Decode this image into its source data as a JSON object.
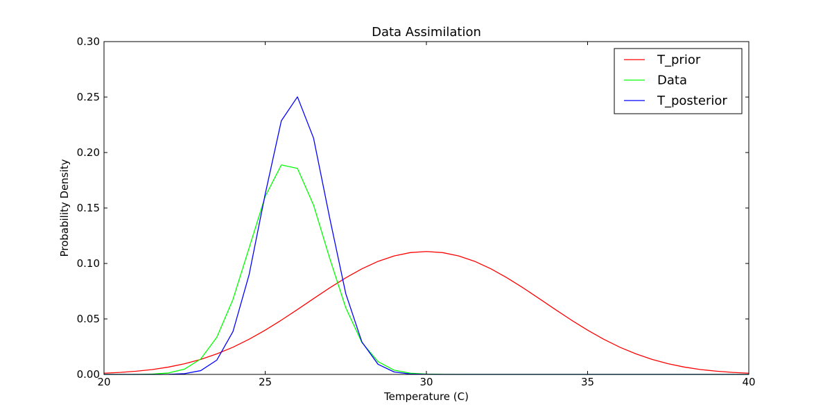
{
  "chart_data": {
    "type": "line",
    "title": "Data Assimilation",
    "xlabel": "Temperature (C)",
    "ylabel": "Probability Density",
    "xlim": [
      20,
      40
    ],
    "ylim": [
      0.0,
      0.3
    ],
    "xticks": [
      20,
      25,
      30,
      35,
      40
    ],
    "xtick_labels": [
      "20",
      "25",
      "30",
      "35",
      "40"
    ],
    "yticks": [
      0.0,
      0.05,
      0.1,
      0.15,
      0.2,
      0.25,
      0.3
    ],
    "ytick_labels": [
      "0.00",
      "0.05",
      "0.10",
      "0.15",
      "0.20",
      "0.25",
      "0.30"
    ],
    "grid": false,
    "legend_position": "top-right",
    "x": [
      20,
      20.5,
      21,
      21.5,
      22,
      22.5,
      23,
      23.5,
      24,
      24.5,
      25,
      25.5,
      26,
      26.5,
      27,
      27.5,
      28,
      28.5,
      29,
      29.5,
      30,
      30.5,
      31,
      31.5,
      32,
      32.5,
      33,
      33.5,
      34,
      34.5,
      35,
      35.5,
      36,
      36.5,
      37,
      37.5,
      38,
      38.5,
      39,
      39.5,
      40
    ],
    "series": [
      {
        "name": "T_prior",
        "color": "#ff0000",
        "values": [
          0.0011,
          0.0018,
          0.0029,
          0.0044,
          0.0066,
          0.0096,
          0.0135,
          0.0185,
          0.0245,
          0.0317,
          0.0399,
          0.0489,
          0.0585,
          0.0683,
          0.078,
          0.0871,
          0.0952,
          0.1019,
          0.1068,
          0.1098,
          0.1108,
          0.1098,
          0.1068,
          0.1019,
          0.0952,
          0.0871,
          0.078,
          0.0683,
          0.0585,
          0.0489,
          0.0399,
          0.0317,
          0.0245,
          0.0185,
          0.0135,
          0.0096,
          0.0066,
          0.0044,
          0.0029,
          0.0018,
          0.0011
        ]
      },
      {
        "name": "Data",
        "color": "#00ff00",
        "values": [
          0.0,
          0.0,
          0.0,
          0.0003,
          0.0013,
          0.0048,
          0.0139,
          0.0335,
          0.0676,
          0.1139,
          0.1604,
          0.1888,
          0.1857,
          0.1526,
          0.1047,
          0.06,
          0.0287,
          0.0115,
          0.0038,
          0.0011,
          0.0003,
          0.0001,
          0.0,
          0.0,
          0.0,
          0.0,
          0.0,
          0.0,
          0.0,
          0.0,
          0.0,
          0.0,
          0.0,
          0.0,
          0.0,
          0.0,
          0.0,
          0.0,
          0.0,
          0.0,
          0.0
        ]
      },
      {
        "name": "T_posterior",
        "color": "#0000ff",
        "values": [
          0.0,
          0.0,
          0.0,
          0.0,
          0.0001,
          0.0007,
          0.0034,
          0.0129,
          0.0386,
          0.0898,
          0.1625,
          0.2286,
          0.2502,
          0.213,
          0.1411,
          0.0727,
          0.0292,
          0.0091,
          0.0022,
          0.0004,
          0.0001,
          0.0,
          0.0,
          0.0,
          0.0,
          0.0,
          0.0,
          0.0,
          0.0,
          0.0,
          0.0,
          0.0,
          0.0,
          0.0,
          0.0,
          0.0,
          0.0,
          0.0,
          0.0,
          0.0,
          0.0
        ]
      }
    ]
  }
}
